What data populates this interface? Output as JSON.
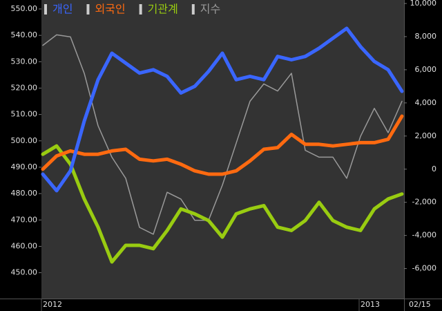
{
  "chart_data": {
    "type": "line",
    "categories": [
      "2012",
      null,
      null,
      null,
      null,
      null,
      null,
      null,
      null,
      null,
      null,
      null,
      null,
      null,
      null,
      null,
      null,
      null,
      null,
      null,
      null,
      null,
      null,
      "2013",
      null,
      null,
      null
    ],
    "last_date": "02/15",
    "series": [
      {
        "name": "개인",
        "color": "#3a66ff",
        "axis": "y2",
        "values": [
          -300,
          -1300,
          -100,
          2900,
          5400,
          7000,
          6400,
          5800,
          6000,
          5600,
          4600,
          5000,
          5900,
          7000,
          5400,
          5600,
          5400,
          6800,
          6600,
          6800,
          7300,
          7900,
          8500,
          7400,
          6500,
          6000,
          4700
        ]
      },
      {
        "name": "외국인",
        "color": "#ff6a10",
        "axis": "y2",
        "values": [
          0,
          800,
          1100,
          900,
          900,
          1100,
          1200,
          600,
          500,
          600,
          300,
          -100,
          -300,
          -300,
          -100,
          500,
          1200,
          1300,
          2100,
          1500,
          1500,
          1400,
          1500,
          1600,
          1600,
          1800,
          3200
        ]
      },
      {
        "name": "기관계",
        "color": "#99cc11",
        "axis": "y2",
        "values": [
          900,
          1400,
          300,
          -1800,
          -3500,
          -5600,
          -4600,
          -4600,
          -4800,
          -3700,
          -2400,
          -2700,
          -3100,
          -4100,
          -2700,
          -2400,
          -2200,
          -3500,
          -3700,
          -3100,
          -2000,
          -3100,
          -3500,
          -3700,
          -2400,
          -1800,
          -1500
        ]
      },
      {
        "name": "지수",
        "color": "#9a9a9a",
        "values": [
          536.2,
          540.2,
          539.4,
          525.6,
          505.7,
          493.8,
          485.8,
          467.2,
          464.6,
          480.5,
          477.9,
          469.9,
          469.9,
          483.2,
          499.1,
          515.0,
          521.6,
          518.9,
          525.6,
          496.4,
          493.8,
          493.8,
          485.8,
          501.7,
          512.3,
          503.1,
          515.0
        ]
      }
    ],
    "ylim": [
      440.2,
      553.4
    ],
    "yticks": [
      {
        "value": 450,
        "label": "450.00"
      },
      {
        "value": 460,
        "label": "460.00"
      },
      {
        "value": 470,
        "label": "470.00"
      },
      {
        "value": 480,
        "label": "480.00"
      },
      {
        "value": 490,
        "label": "490.00"
      },
      {
        "value": 500,
        "label": "500.00"
      },
      {
        "value": 510,
        "label": "510.00"
      },
      {
        "value": 520,
        "label": "520.00"
      },
      {
        "value": 530,
        "label": "530.00"
      },
      {
        "value": 540,
        "label": "540.00"
      },
      {
        "value": 550,
        "label": "550.00"
      }
    ],
    "y2lim": [
      -7810,
      10210
    ],
    "y2ticks": [
      {
        "value": -6000,
        "label": "-6,000"
      },
      {
        "value": -4000,
        "label": "-4,000"
      },
      {
        "value": -2000,
        "label": "-2,000"
      },
      0,
      {
        "value": 2000,
        "label": "2,000"
      },
      {
        "value": 4000,
        "label": "4,000"
      },
      {
        "value": 6000,
        "label": "6,000"
      },
      {
        "value": 8000,
        "label": "8,000"
      },
      {
        "value": 10000,
        "label": "10,000"
      }
    ]
  }
}
